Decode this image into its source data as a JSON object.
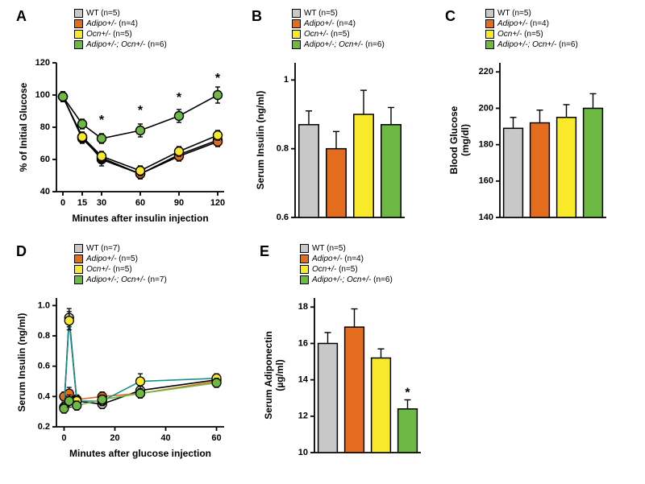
{
  "colors": {
    "wt": "#c8c8c8",
    "adipo": "#e36c1f",
    "ocn": "#f9e92b",
    "double": "#6eb943",
    "axis": "#000000",
    "bg": "#ffffff"
  },
  "stroke_width": 1.8,
  "marker_border": "#000000",
  "panelA": {
    "label": "A",
    "legend": [
      {
        "swatch_key": "wt",
        "text": "WT (n=5)"
      },
      {
        "swatch_key": "adipo",
        "italic": "Adipo+/-",
        "rest": " (n=4)"
      },
      {
        "swatch_key": "ocn",
        "italic": "Ocn+/-",
        "rest": " (n=5)"
      },
      {
        "swatch_key": "double",
        "italic": "Adipo+/-; Ocn+/-",
        "rest": " (n=6)"
      }
    ],
    "ylabel": "% of Initial Glucose",
    "xlabel": "Minutes after insulin injection",
    "xticks": [
      0,
      15,
      30,
      60,
      90,
      120
    ],
    "yticks": [
      40,
      60,
      80,
      100,
      120
    ],
    "ylim": [
      40,
      120
    ],
    "xlim": [
      -5,
      125
    ],
    "marker_r": 5.5,
    "series": {
      "wt": {
        "y": [
          99,
          74,
          60,
          51,
          63,
          72
        ],
        "err": [
          3,
          3,
          4,
          3,
          3,
          3
        ]
      },
      "adipo": {
        "y": [
          99,
          73,
          61,
          51,
          62,
          71
        ],
        "err": [
          3,
          3,
          3,
          3,
          3,
          3
        ]
      },
      "ocn": {
        "y": [
          99,
          74,
          62,
          53,
          65,
          75
        ],
        "err": [
          3,
          3,
          3,
          3,
          3,
          3
        ]
      },
      "double": {
        "y": [
          99,
          82,
          73,
          78,
          87,
          100
        ],
        "err": [
          3,
          3,
          3,
          4,
          4,
          5
        ]
      }
    },
    "sig_x": [
      30,
      60,
      90,
      120
    ],
    "sig_y": [
      84,
      90,
      98,
      110
    ]
  },
  "panelB": {
    "label": "B",
    "legend": [
      {
        "swatch_key": "wt",
        "text": "WT (n=5)"
      },
      {
        "swatch_key": "adipo",
        "italic": "Adipo+/-",
        "rest": " (n=4)"
      },
      {
        "swatch_key": "ocn",
        "italic": "Ocn+/-",
        "rest": " (n=5)"
      },
      {
        "swatch_key": "double",
        "italic": "Adipo+/-; Ocn+/-",
        "rest": " (n=6)"
      }
    ],
    "ylabel": "Serum Insulin (ng/ml)",
    "yticks": [
      0.6,
      0.8,
      1.0
    ],
    "ylim": [
      0.6,
      1.05
    ],
    "bar_width": 0.72,
    "values": {
      "wt": 0.87,
      "adipo": 0.8,
      "ocn": 0.9,
      "double": 0.87
    },
    "errors": {
      "wt": 0.04,
      "adipo": 0.05,
      "ocn": 0.07,
      "double": 0.05
    }
  },
  "panelC": {
    "label": "C",
    "legend": [
      {
        "swatch_key": "wt",
        "text": "WT (n=5)"
      },
      {
        "swatch_key": "adipo",
        "italic": "Adipo+/-",
        "rest": " (n=4)"
      },
      {
        "swatch_key": "ocn",
        "italic": "Ocn+/-",
        "rest": " (n=5)"
      },
      {
        "swatch_key": "double",
        "italic": "Adipo+/-; Ocn+/-",
        "rest": " (n=6)"
      }
    ],
    "ylabel": "Blood Glucose\n(mg/dl)",
    "yticks": [
      140,
      160,
      180,
      200,
      220
    ],
    "ylim": [
      140,
      225
    ],
    "bar_width": 0.72,
    "values": {
      "wt": 189,
      "adipo": 192,
      "ocn": 195,
      "double": 200
    },
    "errors": {
      "wt": 6,
      "adipo": 7,
      "ocn": 7,
      "double": 8
    }
  },
  "panelD": {
    "label": "D",
    "legend": [
      {
        "swatch_key": "wt",
        "text": "WT (n=7)"
      },
      {
        "swatch_key": "adipo",
        "italic": "Adipo+/-",
        "rest": " (n=5)"
      },
      {
        "swatch_key": "ocn",
        "italic": "Ocn+/-",
        "rest": " (n=5)"
      },
      {
        "swatch_key": "double",
        "italic": "Adipo+/-; Ocn+/-",
        "rest": " (n=7)"
      }
    ],
    "ylabel": "Serum Insulin (ng/ml)",
    "xlabel": "Minutes after glucose injection",
    "yticks": [
      0.2,
      0.4,
      0.6,
      0.8,
      1.0
    ],
    "ylim": [
      0.2,
      1.05
    ],
    "xticks": [
      0,
      20,
      40,
      60
    ],
    "xlim": [
      -3,
      63
    ],
    "x": [
      0,
      2,
      5,
      15,
      30,
      60
    ],
    "marker_r": 5.5,
    "series": {
      "wt": {
        "y": [
          0.33,
          0.92,
          0.37,
          0.35,
          0.44,
          0.51
        ],
        "err": [
          0.03,
          0.06,
          0.03,
          0.03,
          0.03,
          0.03
        ]
      },
      "adipo": {
        "y": [
          0.4,
          0.42,
          0.38,
          0.4,
          0.42,
          0.5
        ],
        "err": [
          0.03,
          0.04,
          0.03,
          0.03,
          0.03,
          0.03
        ]
      },
      "ocn": {
        "y": [
          0.33,
          0.9,
          0.37,
          0.37,
          0.5,
          0.52
        ],
        "err": [
          0.03,
          0.06,
          0.03,
          0.03,
          0.05,
          0.03
        ]
      },
      "double": {
        "y": [
          0.32,
          0.37,
          0.34,
          0.38,
          0.42,
          0.49
        ],
        "err": [
          0.03,
          0.04,
          0.03,
          0.03,
          0.03,
          0.03
        ]
      }
    }
  },
  "panelE": {
    "label": "E",
    "legend": [
      {
        "swatch_key": "wt",
        "text": "WT (n=5)"
      },
      {
        "swatch_key": "adipo",
        "italic": "Adipo+/-",
        "rest": " (n=4)"
      },
      {
        "swatch_key": "ocn",
        "italic": "Ocn+/-",
        "rest": " (n=5)"
      },
      {
        "swatch_key": "double",
        "italic": "Adipo+/-; Ocn+/-",
        "rest": " (n=6)"
      }
    ],
    "ylabel": "Serum Adiponectin\n(µg/ml)",
    "yticks": [
      10,
      12,
      14,
      16,
      18
    ],
    "ylim": [
      10,
      18.5
    ],
    "bar_width": 0.72,
    "values": {
      "wt": 16.0,
      "adipo": 16.9,
      "ocn": 15.2,
      "double": 12.4
    },
    "errors": {
      "wt": 0.6,
      "adipo": 1.0,
      "ocn": 0.5,
      "double": 0.5
    },
    "sig_on": "double"
  }
}
